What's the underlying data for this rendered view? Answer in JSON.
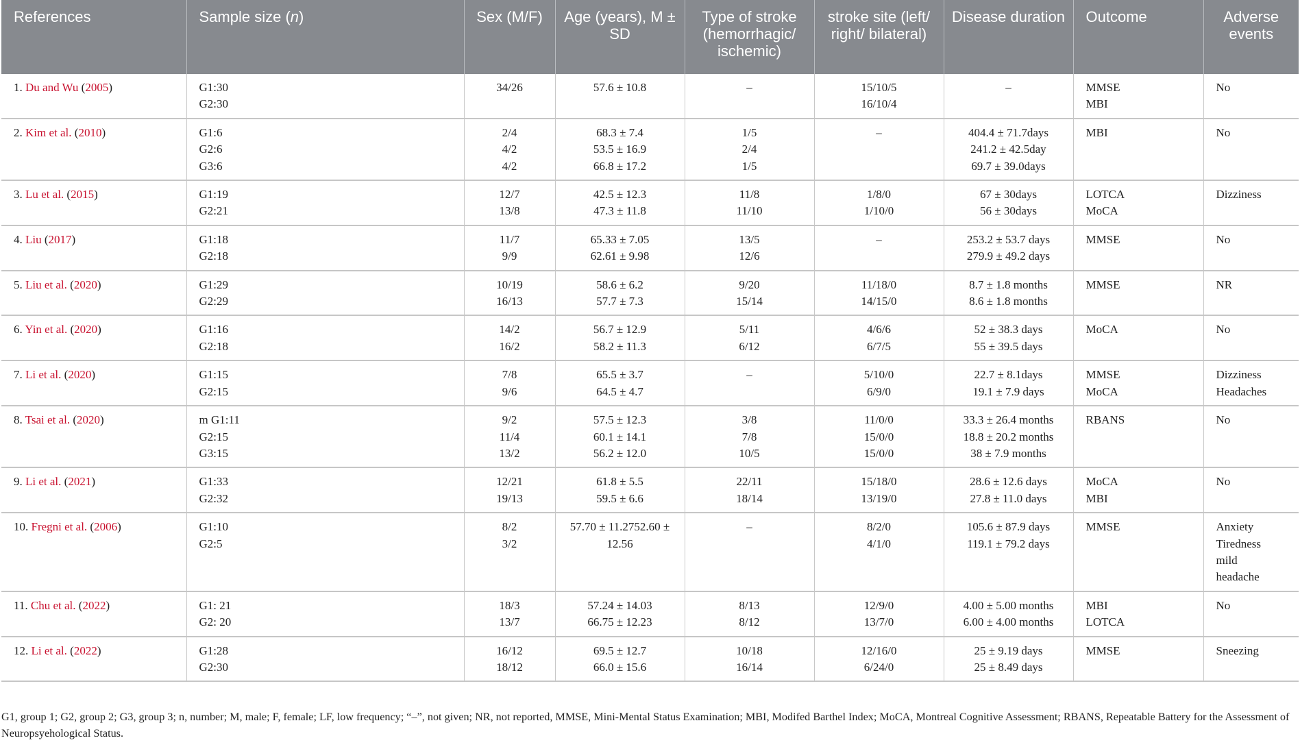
{
  "table": {
    "headers": [
      {
        "text": "References",
        "align": "l"
      },
      {
        "text": "Sample size (",
        "italic": "n",
        "after": ")",
        "align": "l"
      },
      {
        "text": "Sex (M/F)",
        "align": "c"
      },
      {
        "text": "Age (years), M ± SD",
        "align": "c"
      },
      {
        "text": "Type of stroke (hemorrhagic/ ischemic)",
        "align": "c"
      },
      {
        "text": "stroke site (left/ right/ bilateral)",
        "align": "c"
      },
      {
        "text": "Disease duration",
        "align": "c"
      },
      {
        "text": "Outcome",
        "align": "l"
      },
      {
        "text": "Adverse events",
        "align": "c"
      }
    ],
    "rows": [
      {
        "num": "1.",
        "author": "Du and Wu",
        "year": "2005",
        "samples": [
          "G1:30",
          "G2:30"
        ],
        "sex": [
          "34/26"
        ],
        "age": [
          "57.6 ± 10.8"
        ],
        "type": [
          "–"
        ],
        "site": [
          "15/10/5",
          "16/10/4"
        ],
        "duration": [
          "–"
        ],
        "outcome": [
          "MMSE",
          "MBI"
        ],
        "adverse": [
          "No"
        ]
      },
      {
        "num": "2.",
        "author": "Kim et al.",
        "year": "2010",
        "samples": [
          "G1:6",
          "G2:6",
          "G3:6"
        ],
        "sex": [
          "2/4",
          "4/2",
          "4/2"
        ],
        "age": [
          "68.3 ± 7.4",
          "53.5 ± 16.9",
          "66.8 ± 17.2"
        ],
        "type": [
          "1/5",
          "2/4",
          "1/5"
        ],
        "site": [
          "–"
        ],
        "duration": [
          "404.4 ± 71.7days",
          "241.2 ± 42.5day",
          "69.7 ± 39.0days"
        ],
        "outcome": [
          "MBI"
        ],
        "adverse": [
          "No"
        ]
      },
      {
        "num": "3.",
        "author": "Lu et al.",
        "year": "2015",
        "samples": [
          "G1:19",
          "G2:21"
        ],
        "sex": [
          "12/7",
          "13/8"
        ],
        "age": [
          "42.5 ± 12.3",
          "47.3 ± 11.8"
        ],
        "type": [
          "11/8",
          "11/10"
        ],
        "site": [
          "1/8/0",
          "1/10/0"
        ],
        "duration": [
          "67 ± 30days",
          "56 ± 30days"
        ],
        "outcome": [
          "LOTCA",
          "MoCA"
        ],
        "adverse": [
          "Dizziness"
        ]
      },
      {
        "num": "4.",
        "author": "Liu",
        "year": "2017",
        "samples": [
          "G1:18",
          "G2:18"
        ],
        "sex": [
          "11/7",
          "9/9"
        ],
        "age": [
          "65.33 ± 7.05",
          "62.61 ± 9.98"
        ],
        "type": [
          "13/5",
          "12/6"
        ],
        "site": [
          "–"
        ],
        "duration": [
          "253.2 ± 53.7 days",
          "279.9 ± 49.2 days"
        ],
        "outcome": [
          "MMSE"
        ],
        "adverse": [
          "No"
        ]
      },
      {
        "num": "5.",
        "author": "Liu et al.",
        "year": "2020",
        "samples": [
          "G1:29",
          "G2:29"
        ],
        "sex": [
          "10/19",
          "16/13"
        ],
        "age": [
          "58.6 ± 6.2",
          "57.7 ± 7.3"
        ],
        "type": [
          "9/20",
          "15/14"
        ],
        "site": [
          "11/18/0",
          "14/15/0"
        ],
        "duration": [
          "8.7 ± 1.8 months",
          "8.6 ± 1.8 months"
        ],
        "outcome": [
          "MMSE"
        ],
        "adverse": [
          "NR"
        ]
      },
      {
        "num": "6.",
        "author": "Yin et al.",
        "year": "2020",
        "samples": [
          "G1:16",
          "G2:18"
        ],
        "sex": [
          "14/2",
          "16/2"
        ],
        "age": [
          "56.7 ± 12.9",
          "58.2 ± 11.3"
        ],
        "type": [
          "5/11",
          "6/12"
        ],
        "site": [
          "4/6/6",
          "6/7/5"
        ],
        "duration": [
          "52 ± 38.3 days",
          "55 ± 39.5 days"
        ],
        "outcome": [
          "MoCA"
        ],
        "adverse": [
          "No"
        ]
      },
      {
        "num": "7.",
        "author": "Li et al.",
        "year": "2020",
        "samples": [
          "G1:15",
          "G2:15"
        ],
        "sex": [
          "7/8",
          "9/6"
        ],
        "age": [
          "65.5 ± 3.7",
          "64.5 ± 4.7"
        ],
        "type": [
          "–"
        ],
        "site": [
          "5/10/0",
          "6/9/0"
        ],
        "duration": [
          "22.7 ± 8.1days",
          "19.1 ± 7.9 days"
        ],
        "outcome": [
          "MMSE",
          "MoCA"
        ],
        "adverse": [
          "Dizziness",
          "Headaches"
        ]
      },
      {
        "num": "8.",
        "author": "Tsai et al.",
        "year": "2020",
        "samples": [
          "m G1:11",
          "G2:15",
          "G3:15"
        ],
        "sex": [
          "9/2",
          "11/4",
          "13/2"
        ],
        "age": [
          "57.5 ± 12.3",
          "60.1 ± 14.1",
          "56.2 ± 12.0"
        ],
        "type": [
          "3/8",
          "7/8",
          "10/5"
        ],
        "site": [
          "11/0/0",
          "15/0/0",
          "15/0/0"
        ],
        "duration": [
          "33.3 ± 26.4 months",
          "18.8 ± 20.2 months",
          "38 ± 7.9 months"
        ],
        "outcome": [
          "RBANS"
        ],
        "adverse": [
          "No"
        ]
      },
      {
        "num": "9.",
        "author": "Li et al.",
        "year": "2021",
        "samples": [
          "G1:33",
          "G2:32"
        ],
        "sex": [
          "12/21",
          "19/13"
        ],
        "age": [
          "61.8 ± 5.5",
          "59.5 ± 6.6"
        ],
        "type": [
          "22/11",
          "18/14"
        ],
        "site": [
          "15/18/0",
          "13/19/0"
        ],
        "duration": [
          "28.6 ± 12.6 days",
          "27.8 ± 11.0 days"
        ],
        "outcome": [
          "MoCA",
          "MBI"
        ],
        "adverse": [
          "No"
        ]
      },
      {
        "num": "10.",
        "author": "Fregni et al.",
        "year": "2006",
        "samples": [
          "G1:10",
          "G2:5"
        ],
        "sex": [
          "8/2",
          "3/2"
        ],
        "age": [
          "57.70 ± 11.2752.60 ± 12.56"
        ],
        "type": [
          "–"
        ],
        "site": [
          "8/2/0",
          "4/1/0"
        ],
        "duration": [
          "105.6 ± 87.9 days",
          "119.1 ± 79.2 days"
        ],
        "outcome": [
          "MMSE"
        ],
        "adverse": [
          "Anxiety",
          "Tiredness",
          "mild",
          "headache"
        ]
      },
      {
        "num": "11.",
        "author": "Chu et al.",
        "year": "2022",
        "samples": [
          "G1: 21",
          "G2: 20"
        ],
        "sex": [
          "18/3",
          "13/7"
        ],
        "age": [
          "57.24 ± 14.03",
          "66.75 ± 12.23"
        ],
        "type": [
          "8/13",
          "8/12"
        ],
        "site": [
          "12/9/0",
          "13/7/0"
        ],
        "duration": [
          "4.00 ± 5.00 months",
          "6.00 ± 4.00 months"
        ],
        "outcome": [
          "MBI",
          "LOTCA"
        ],
        "adverse": [
          "No"
        ]
      },
      {
        "num": "12.",
        "author": "Li et al.",
        "year": "2022",
        "samples": [
          "G1:28",
          "G2:30"
        ],
        "sex": [
          "16/12",
          "18/12"
        ],
        "age": [
          "69.5 ± 12.7",
          "66.0 ± 15.6"
        ],
        "type": [
          "10/18",
          "16/14"
        ],
        "site": [
          "12/16/0",
          "6/24/0"
        ],
        "duration": [
          "25 ± 9.19 days",
          "25 ± 8.49 days"
        ],
        "outcome": [
          "MMSE"
        ],
        "adverse": [
          "Sneezing"
        ]
      }
    ]
  },
  "footnote": "G1, group 1; G2, group 2; G3, group 3; n, number; M, male; F, female; LF, low frequency; “–”, not given; NR, not reported, MMSE, Mini-Mental Status Examination; MBI, Modifed Barthel Index; MoCA, Montreal Cognitive Assessment; RBANS, Repeatable Battery for the Assessment of Neuropsyehological Status.",
  "colors": {
    "header_bg": "#878a8f",
    "header_text": "#ffffff",
    "link": "#c8102e",
    "row_border": "#c6c6c6"
  }
}
